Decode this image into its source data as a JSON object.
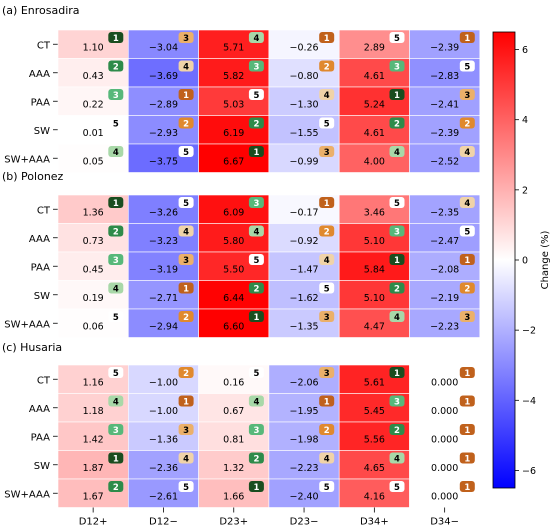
{
  "chart_data": {
    "type": "heatmap",
    "columns": [
      "D12+",
      "D12−",
      "D23+",
      "D23−",
      "D34+",
      "D34−"
    ],
    "rows": [
      "CT",
      "AAA",
      "PAA",
      "SW",
      "SW+AAA"
    ],
    "colorbar": {
      "label": "Change (%)",
      "range": [
        -6.5,
        6.5
      ],
      "ticks": [
        6,
        4,
        2,
        0,
        -2,
        -4,
        -6
      ],
      "tick_labels": [
        "6",
        "4",
        "2",
        "0",
        "−2",
        "−4",
        "−6"
      ]
    },
    "rank_badge_colors": {
      "1": "#1a4d1f",
      "2": "#2e8b4a",
      "3": "#57b87a",
      "4": "#a8d8a8",
      "5": "#ffffff",
      "orange_1": "#c0611c",
      "orange_2": "#e0892e",
      "orange_3": "#ebb06a",
      "orange_4": "#f0d3a8",
      "orange_5": "#ffffff"
    },
    "panels": [
      {
        "title": "(a) Enrosadira",
        "values": [
          [
            1.1,
            -3.04,
            5.71,
            -0.26,
            2.89,
            -2.39
          ],
          [
            0.43,
            -3.69,
            5.82,
            -0.8,
            4.61,
            -2.83
          ],
          [
            0.22,
            -2.89,
            5.03,
            -1.3,
            5.24,
            -2.41
          ],
          [
            0.01,
            -2.93,
            6.19,
            -1.55,
            4.61,
            -2.39
          ],
          [
            0.05,
            -3.75,
            6.67,
            -0.99,
            4.0,
            -2.52
          ]
        ],
        "labels": [
          [
            "1.10",
            "−3.04",
            "5.71",
            "−0.26",
            "2.89",
            "−2.39"
          ],
          [
            "0.43",
            "−3.69",
            "5.82",
            "−0.80",
            "4.61",
            "−2.83"
          ],
          [
            "0.22",
            "−2.89",
            "5.03",
            "−1.30",
            "5.24",
            "−2.41"
          ],
          [
            "0.01",
            "−2.93",
            "6.19",
            "−1.55",
            "4.61",
            "−2.39"
          ],
          [
            "0.05",
            "−3.75",
            "6.67",
            "−0.99",
            "4.00",
            "−2.52"
          ]
        ],
        "ranks": [
          [
            1,
            3,
            4,
            1,
            5,
            1
          ],
          [
            2,
            4,
            3,
            2,
            3,
            5
          ],
          [
            3,
            1,
            5,
            4,
            1,
            3
          ],
          [
            5,
            2,
            2,
            5,
            2,
            2
          ],
          [
            4,
            5,
            1,
            3,
            4,
            4
          ]
        ],
        "badge_style": [
          [
            "g",
            "o",
            "g",
            "o",
            "g",
            "o"
          ],
          [
            "g",
            "o",
            "g",
            "o",
            "g",
            "o"
          ],
          [
            "g",
            "o",
            "g",
            "o",
            "g",
            "o"
          ],
          [
            "g",
            "o",
            "g",
            "o",
            "g",
            "o"
          ],
          [
            "g",
            "o",
            "g",
            "o",
            "g",
            "o"
          ]
        ]
      },
      {
        "title": "(b) Polonez",
        "values": [
          [
            1.36,
            -3.26,
            6.09,
            -0.17,
            3.46,
            -2.35
          ],
          [
            0.73,
            -3.23,
            5.8,
            -0.92,
            5.1,
            -2.47
          ],
          [
            0.45,
            -3.19,
            5.5,
            -1.47,
            5.84,
            -2.08
          ],
          [
            0.19,
            -2.71,
            6.44,
            -1.62,
            5.1,
            -2.19
          ],
          [
            0.06,
            -2.94,
            6.6,
            -1.35,
            4.47,
            -2.23
          ]
        ],
        "labels": [
          [
            "1.36",
            "−3.26",
            "6.09",
            "−0.17",
            "3.46",
            "−2.35"
          ],
          [
            "0.73",
            "−3.23",
            "5.80",
            "−0.92",
            "5.10",
            "−2.47"
          ],
          [
            "0.45",
            "−3.19",
            "5.50",
            "−1.47",
            "5.84",
            "−2.08"
          ],
          [
            "0.19",
            "−2.71",
            "6.44",
            "−1.62",
            "5.10",
            "−2.19"
          ],
          [
            "0.06",
            "−2.94",
            "6.60",
            "−1.35",
            "4.47",
            "−2.23"
          ]
        ],
        "ranks": [
          [
            1,
            5,
            3,
            1,
            5,
            4
          ],
          [
            2,
            4,
            4,
            2,
            3,
            5
          ],
          [
            3,
            3,
            5,
            4,
            1,
            1
          ],
          [
            4,
            1,
            2,
            5,
            2,
            2
          ],
          [
            5,
            2,
            1,
            3,
            4,
            3
          ]
        ],
        "badge_style": [
          [
            "g",
            "o",
            "g",
            "o",
            "g",
            "o"
          ],
          [
            "g",
            "o",
            "g",
            "o",
            "g",
            "o"
          ],
          [
            "g",
            "o",
            "g",
            "o",
            "g",
            "o"
          ],
          [
            "g",
            "o",
            "g",
            "o",
            "g",
            "o"
          ],
          [
            "g",
            "o",
            "g",
            "o",
            "g",
            "o"
          ]
        ]
      },
      {
        "title": "(c) Husaria",
        "values": [
          [
            1.16,
            -1.0,
            0.16,
            -2.06,
            5.61,
            0.0
          ],
          [
            1.18,
            -1.0,
            0.67,
            -1.95,
            5.45,
            0.0
          ],
          [
            1.42,
            -1.36,
            0.81,
            -1.98,
            5.56,
            0.0
          ],
          [
            1.87,
            -2.36,
            1.32,
            -2.23,
            4.65,
            0.0
          ],
          [
            1.67,
            -2.61,
            1.66,
            -2.4,
            4.16,
            0.0
          ]
        ],
        "labels": [
          [
            "1.16",
            "−1.00",
            "0.16",
            "−2.06",
            "5.61",
            "0.000"
          ],
          [
            "1.18",
            "−1.00",
            "0.67",
            "−1.95",
            "5.45",
            "0.000"
          ],
          [
            "1.42",
            "−1.36",
            "0.81",
            "−1.98",
            "5.56",
            "0.000"
          ],
          [
            "1.87",
            "−2.36",
            "1.32",
            "−2.23",
            "4.65",
            "0.000"
          ],
          [
            "1.67",
            "−2.61",
            "1.66",
            "−2.40",
            "4.16",
            "0.000"
          ]
        ],
        "ranks": [
          [
            5,
            2,
            5,
            3,
            1,
            1
          ],
          [
            4,
            1,
            4,
            1,
            3,
            1
          ],
          [
            3,
            3,
            3,
            2,
            2,
            1
          ],
          [
            1,
            4,
            2,
            4,
            4,
            1
          ],
          [
            2,
            5,
            1,
            5,
            5,
            1
          ]
        ],
        "badge_style": [
          [
            "g",
            "o",
            "g",
            "o",
            "g",
            "o"
          ],
          [
            "g",
            "o",
            "g",
            "o",
            "g",
            "o"
          ],
          [
            "g",
            "o",
            "g",
            "o",
            "g",
            "o"
          ],
          [
            "g",
            "o",
            "g",
            "o",
            "g",
            "o"
          ],
          [
            "g",
            "o",
            "g",
            "o",
            "g",
            "o"
          ]
        ]
      }
    ]
  }
}
